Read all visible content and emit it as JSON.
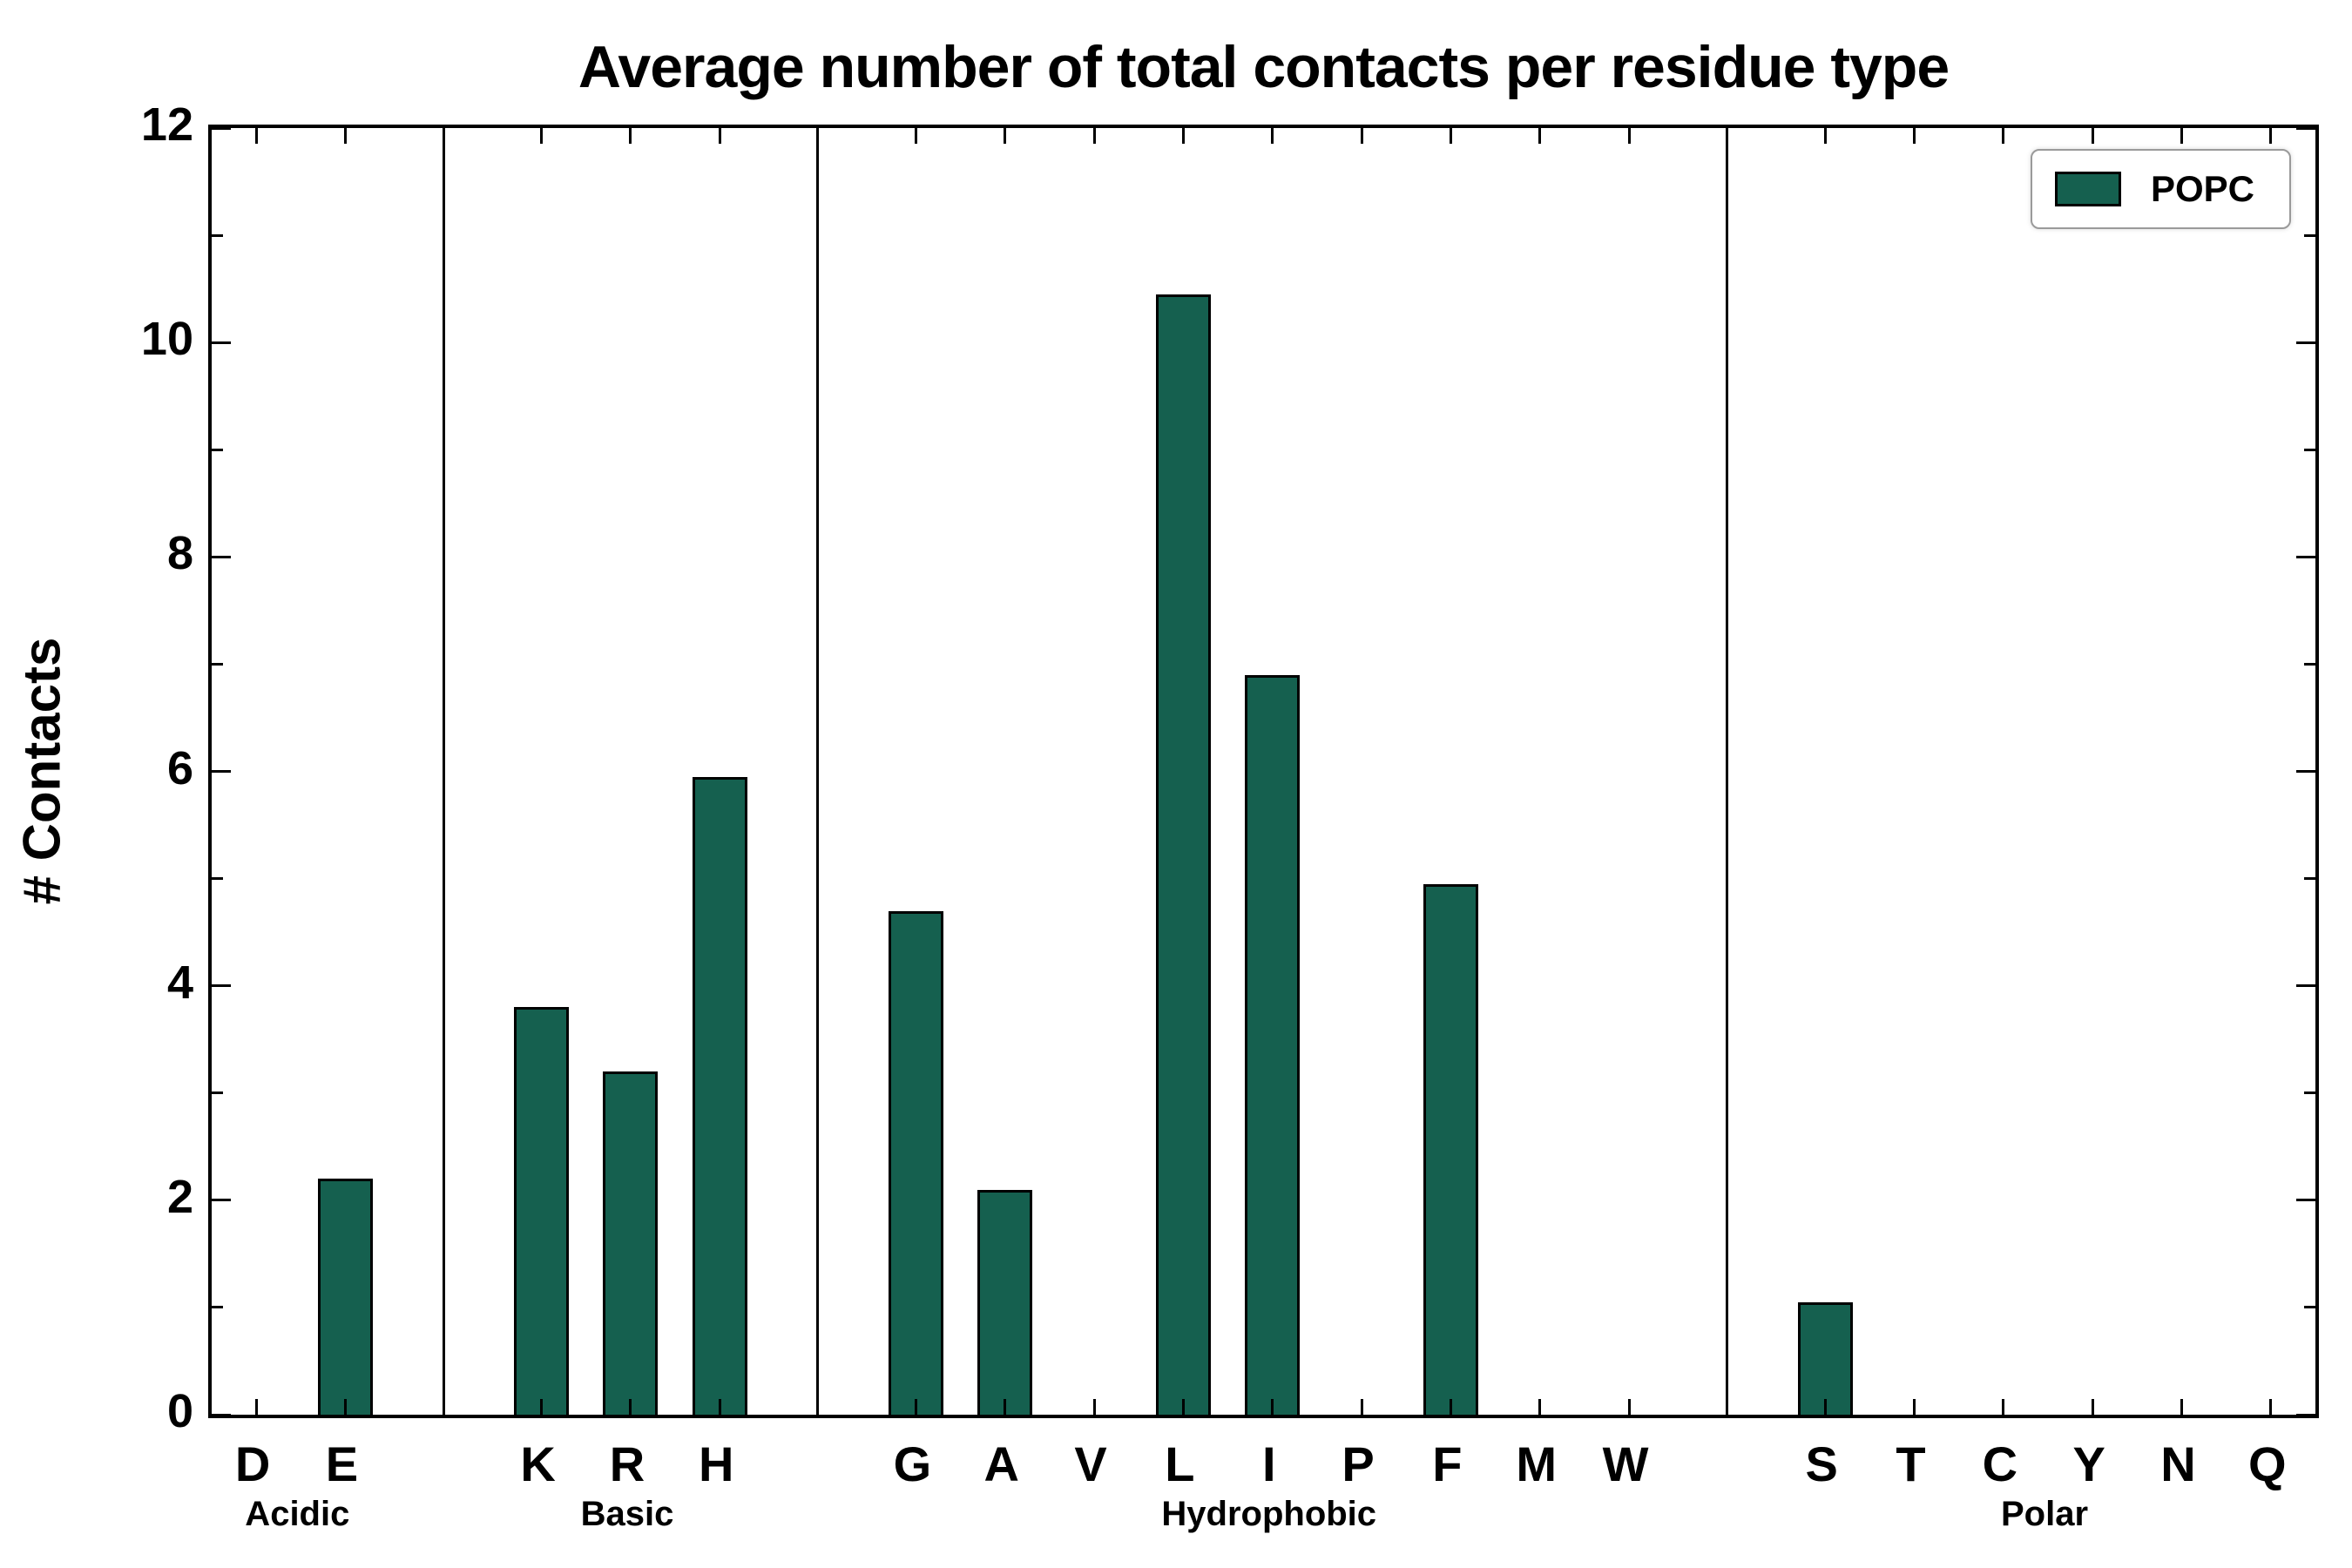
{
  "chart_data": {
    "type": "bar",
    "title": "Average number of total contacts per residue type",
    "xlabel": "",
    "ylabel": "# Contacts",
    "ylim": [
      0,
      12
    ],
    "yticks_major": [
      0,
      2,
      4,
      6,
      8,
      10,
      12
    ],
    "yticks_minor": [
      1,
      3,
      5,
      7,
      9,
      11
    ],
    "grid": "off",
    "legend_position": "upper right",
    "bar_color": "#15604f",
    "bar_edge_color": "#000000",
    "legend": [
      {
        "name": "POPC",
        "color": "#15604f"
      }
    ],
    "groups": [
      {
        "label": "Acidic",
        "categories": [
          "D",
          "E"
        ],
        "values": [
          0.0,
          2.2
        ]
      },
      {
        "label": "Basic",
        "categories": [
          "K",
          "R",
          "H"
        ],
        "values": [
          3.8,
          3.2,
          5.95
        ]
      },
      {
        "label": "Hydrophobic",
        "categories": [
          "G",
          "A",
          "V",
          "L",
          "I",
          "P",
          "F",
          "M",
          "W"
        ],
        "values": [
          4.7,
          2.1,
          0.0,
          10.45,
          6.9,
          0.0,
          4.95,
          0.0,
          0.0
        ]
      },
      {
        "label": "Polar",
        "categories": [
          "S",
          "T",
          "C",
          "Y",
          "N",
          "Q"
        ],
        "values": [
          1.05,
          0.0,
          0.0,
          0.0,
          0.0,
          0.0
        ]
      }
    ]
  }
}
